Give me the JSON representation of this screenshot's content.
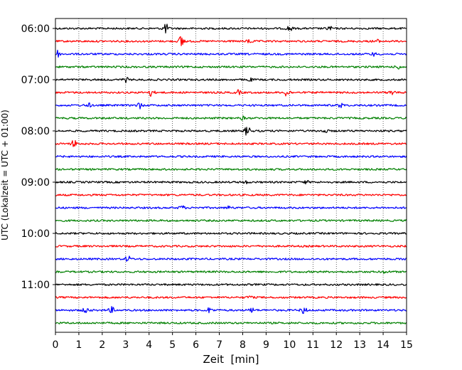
{
  "chart_data": {
    "type": "line",
    "title": "",
    "xlabel": "Zeit  [min]",
    "ylabel": "UTC (Lokalzeit = UTC + 01:00)",
    "xlim": [
      0,
      15
    ],
    "x_ticks": [
      0,
      1,
      2,
      3,
      4,
      5,
      6,
      7,
      8,
      9,
      10,
      11,
      12,
      13,
      14,
      15
    ],
    "x_grid": "dotted",
    "y_tick_labels": [
      "06:00",
      "07:00",
      "08:00",
      "09:00",
      "10:00",
      "11:00"
    ],
    "trace_interval_minutes": 15,
    "start_time": "06:00",
    "trace_colors": [
      "#000000",
      "#ff0000",
      "#0000ff",
      "#008000"
    ],
    "series": [
      {
        "start": "06:00",
        "color": "#000000",
        "events": [
          {
            "x": 4.7,
            "amplitude": 7
          },
          {
            "x": 10.0,
            "amplitude": 4
          },
          {
            "x": 11.7,
            "amplitude": 3
          }
        ]
      },
      {
        "start": "06:15",
        "color": "#ff0000",
        "events": [
          {
            "x": 5.4,
            "amplitude": 10
          },
          {
            "x": 8.3,
            "amplitude": 3
          },
          {
            "x": 13.7,
            "amplitude": 3
          }
        ]
      },
      {
        "start": "06:30",
        "color": "#0000ff",
        "events": [
          {
            "x": 0.05,
            "amplitude": 6
          },
          {
            "x": 13.6,
            "amplitude": 2
          }
        ]
      },
      {
        "start": "06:45",
        "color": "#008000",
        "events": [
          {
            "x": 14.7,
            "amplitude": 3
          }
        ]
      },
      {
        "start": "07:00",
        "color": "#000000",
        "events": [
          {
            "x": 3.0,
            "amplitude": 3
          },
          {
            "x": 8.3,
            "amplitude": 2
          }
        ]
      },
      {
        "start": "07:15",
        "color": "#ff0000",
        "events": [
          {
            "x": 4.1,
            "amplitude": 5
          },
          {
            "x": 7.8,
            "amplitude": 3
          },
          {
            "x": 9.9,
            "amplitude": 6
          },
          {
            "x": 14.4,
            "amplitude": 4
          }
        ]
      },
      {
        "start": "07:30",
        "color": "#0000ff",
        "events": [
          {
            "x": 1.4,
            "amplitude": 3
          },
          {
            "x": 3.6,
            "amplitude": 4
          },
          {
            "x": 12.2,
            "amplitude": 3
          }
        ]
      },
      {
        "start": "07:45",
        "color": "#008000",
        "events": [
          {
            "x": 8.0,
            "amplitude": 2
          }
        ]
      },
      {
        "start": "08:00",
        "color": "#000000",
        "events": [
          {
            "x": 8.2,
            "amplitude": 7
          },
          {
            "x": 11.5,
            "amplitude": 3
          }
        ]
      },
      {
        "start": "08:15",
        "color": "#ff0000",
        "events": [
          {
            "x": 0.8,
            "amplitude": 5
          }
        ]
      },
      {
        "start": "08:30",
        "color": "#0000ff",
        "events": []
      },
      {
        "start": "08:45",
        "color": "#008000",
        "events": []
      },
      {
        "start": "09:00",
        "color": "#000000",
        "events": [
          {
            "x": 8.1,
            "amplitude": 2
          },
          {
            "x": 10.7,
            "amplitude": 2
          }
        ]
      },
      {
        "start": "09:15",
        "color": "#ff0000",
        "events": []
      },
      {
        "start": "09:30",
        "color": "#0000ff",
        "events": [
          {
            "x": 5.4,
            "amplitude": 3
          },
          {
            "x": 7.4,
            "amplitude": 2
          }
        ]
      },
      {
        "start": "09:45",
        "color": "#008000",
        "events": []
      },
      {
        "start": "10:00",
        "color": "#000000",
        "events": []
      },
      {
        "start": "10:15",
        "color": "#ff0000",
        "events": []
      },
      {
        "start": "10:30",
        "color": "#0000ff",
        "events": [
          {
            "x": 3.1,
            "amplitude": 4
          }
        ]
      },
      {
        "start": "10:45",
        "color": "#008000",
        "events": [
          {
            "x": 14.1,
            "amplitude": 2
          }
        ]
      },
      {
        "start": "11:00",
        "color": "#000000",
        "events": []
      },
      {
        "start": "11:15",
        "color": "#ff0000",
        "events": [
          {
            "x": 8.3,
            "amplitude": 2
          }
        ]
      },
      {
        "start": "11:30",
        "color": "#0000ff",
        "events": [
          {
            "x": 1.3,
            "amplitude": 4
          },
          {
            "x": 2.4,
            "amplitude": 4
          },
          {
            "x": 6.6,
            "amplitude": 4
          },
          {
            "x": 8.4,
            "amplitude": 3
          },
          {
            "x": 10.6,
            "amplitude": 5
          }
        ]
      },
      {
        "start": "11:45",
        "color": "#008000",
        "events": []
      }
    ]
  }
}
